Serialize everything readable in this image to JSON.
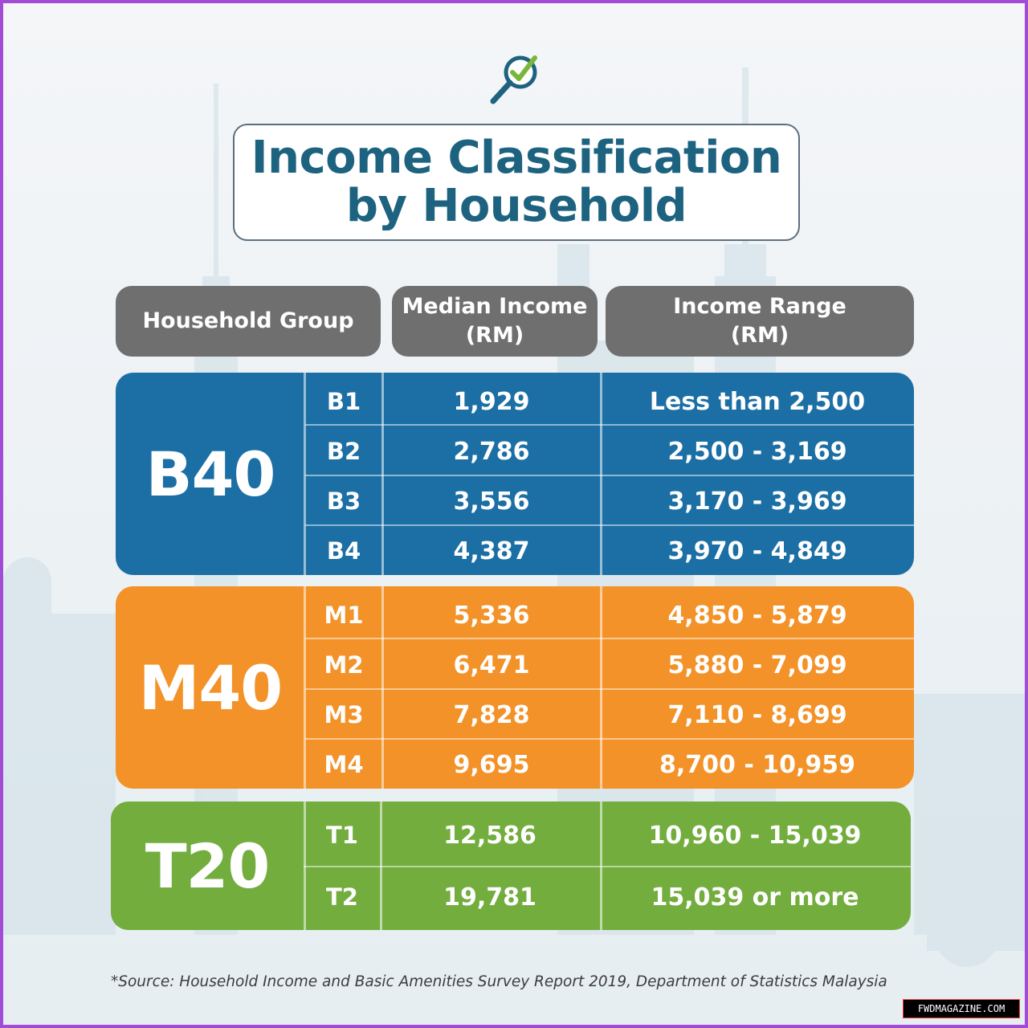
{
  "title": {
    "line1": "Income Classification",
    "line2": "by Household"
  },
  "headers": {
    "group": "Household Group",
    "median_line1": "Median Income",
    "median_line2": "(RM)",
    "range_line1": "Income Range",
    "range_line2": "(RM)"
  },
  "groups": [
    {
      "name": "B40",
      "color": "#1c6fa4",
      "rows": [
        {
          "sub": "B1",
          "median": "1,929",
          "range": "Less than  2,500"
        },
        {
          "sub": "B2",
          "median": "2,786",
          "range": "2,500 - 3,169"
        },
        {
          "sub": "B3",
          "median": "3,556",
          "range": "3,170 - 3,969"
        },
        {
          "sub": "B4",
          "median": "4,387",
          "range": "3,970 - 4,849"
        }
      ]
    },
    {
      "name": "M40",
      "color": "#f39228",
      "rows": [
        {
          "sub": "M1",
          "median": "5,336",
          "range": "4,850 - 5,879"
        },
        {
          "sub": "M2",
          "median": "6,471",
          "range": "5,880 - 7,099"
        },
        {
          "sub": "M3",
          "median": "7,828",
          "range": "7,110 - 8,699"
        },
        {
          "sub": "M4",
          "median": "9,695",
          "range": "8,700 - 10,959"
        }
      ]
    },
    {
      "name": "T20",
      "color": "#72ad3e",
      "rows": [
        {
          "sub": "T1",
          "median": "12,586",
          "range": "10,960 - 15,039"
        },
        {
          "sub": "T2",
          "median": "19,781",
          "range": "15,039 or more"
        }
      ]
    }
  ],
  "source": "*Source:  Household Income and Basic Amenities Survey Report 2019, Department of Statistics Malaysia",
  "watermark": "FWDMAGAZINE.COM",
  "icons": {
    "logo": "magnifier-check-icon"
  }
}
